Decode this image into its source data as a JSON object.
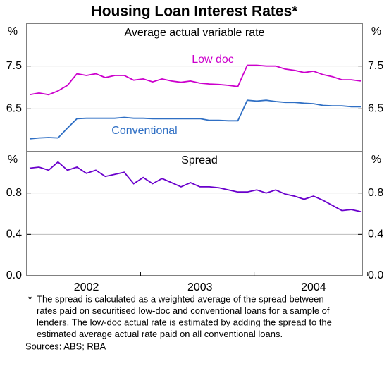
{
  "title": "Housing Loan Interest Rates*",
  "chart_data": [
    {
      "type": "line",
      "subtitle": "Average actual variable rate",
      "ylabel": "%",
      "ylim": [
        5.5,
        8.5
      ],
      "yticks": [
        6.5,
        7.5
      ],
      "grid": true,
      "series": [
        {
          "name": "Low doc",
          "color": "#cc00cc",
          "values": [
            6.83,
            6.87,
            6.83,
            6.92,
            7.05,
            7.32,
            7.28,
            7.32,
            7.23,
            7.28,
            7.28,
            7.17,
            7.2,
            7.13,
            7.2,
            7.15,
            7.12,
            7.15,
            7.1,
            7.08,
            7.07,
            7.05,
            7.02,
            7.52,
            7.52,
            7.5,
            7.5,
            7.43,
            7.4,
            7.35,
            7.38,
            7.3,
            7.25,
            7.18,
            7.18,
            7.15
          ]
        },
        {
          "name": "Conventional",
          "color": "#2f6fc4",
          "values": [
            5.8,
            5.82,
            5.83,
            5.82,
            6.05,
            6.27,
            6.28,
            6.28,
            6.28,
            6.28,
            6.3,
            6.28,
            6.28,
            6.27,
            6.27,
            6.27,
            6.27,
            6.27,
            6.27,
            6.23,
            6.23,
            6.22,
            6.22,
            6.7,
            6.68,
            6.7,
            6.67,
            6.65,
            6.65,
            6.63,
            6.62,
            6.58,
            6.57,
            6.57,
            6.55,
            6.55
          ]
        }
      ]
    },
    {
      "type": "line",
      "ylabel": "%",
      "ylim": [
        0,
        1.2
      ],
      "yticks": [
        {
          "value": 0,
          "label": "0.0"
        },
        0.4,
        0.8
      ],
      "grid": true,
      "categories": [
        null,
        null,
        null,
        null,
        null,
        null,
        "2002",
        null,
        null,
        null,
        null,
        null,
        null,
        null,
        null,
        null,
        null,
        null,
        "2003",
        null,
        null,
        null,
        null,
        null,
        null,
        null,
        null,
        null,
        null,
        null,
        "2004",
        null,
        null,
        null,
        null,
        null
      ],
      "series": [
        {
          "name": "Spread",
          "color": "#6a00cc",
          "values": [
            1.04,
            1.05,
            1.02,
            1.1,
            1.02,
            1.05,
            0.99,
            1.02,
            0.96,
            0.98,
            1.0,
            0.89,
            0.95,
            0.89,
            0.94,
            0.9,
            0.86,
            0.9,
            0.86,
            0.86,
            0.85,
            0.83,
            0.81,
            0.81,
            0.83,
            0.8,
            0.83,
            0.79,
            0.77,
            0.74,
            0.77,
            0.73,
            0.68,
            0.63,
            0.64,
            0.62
          ]
        }
      ]
    }
  ],
  "footnote": {
    "marker": "*",
    "lines": [
      "The spread is calculated as a weighted average of the spread between",
      "rates paid on securitised low-doc and conventional loans for a sample of",
      "lenders. The low-doc actual rate is estimated by adding the spread to the",
      "estimated average actual rate paid on all conventional loans."
    ]
  },
  "sources": "Sources: ABS; RBA"
}
